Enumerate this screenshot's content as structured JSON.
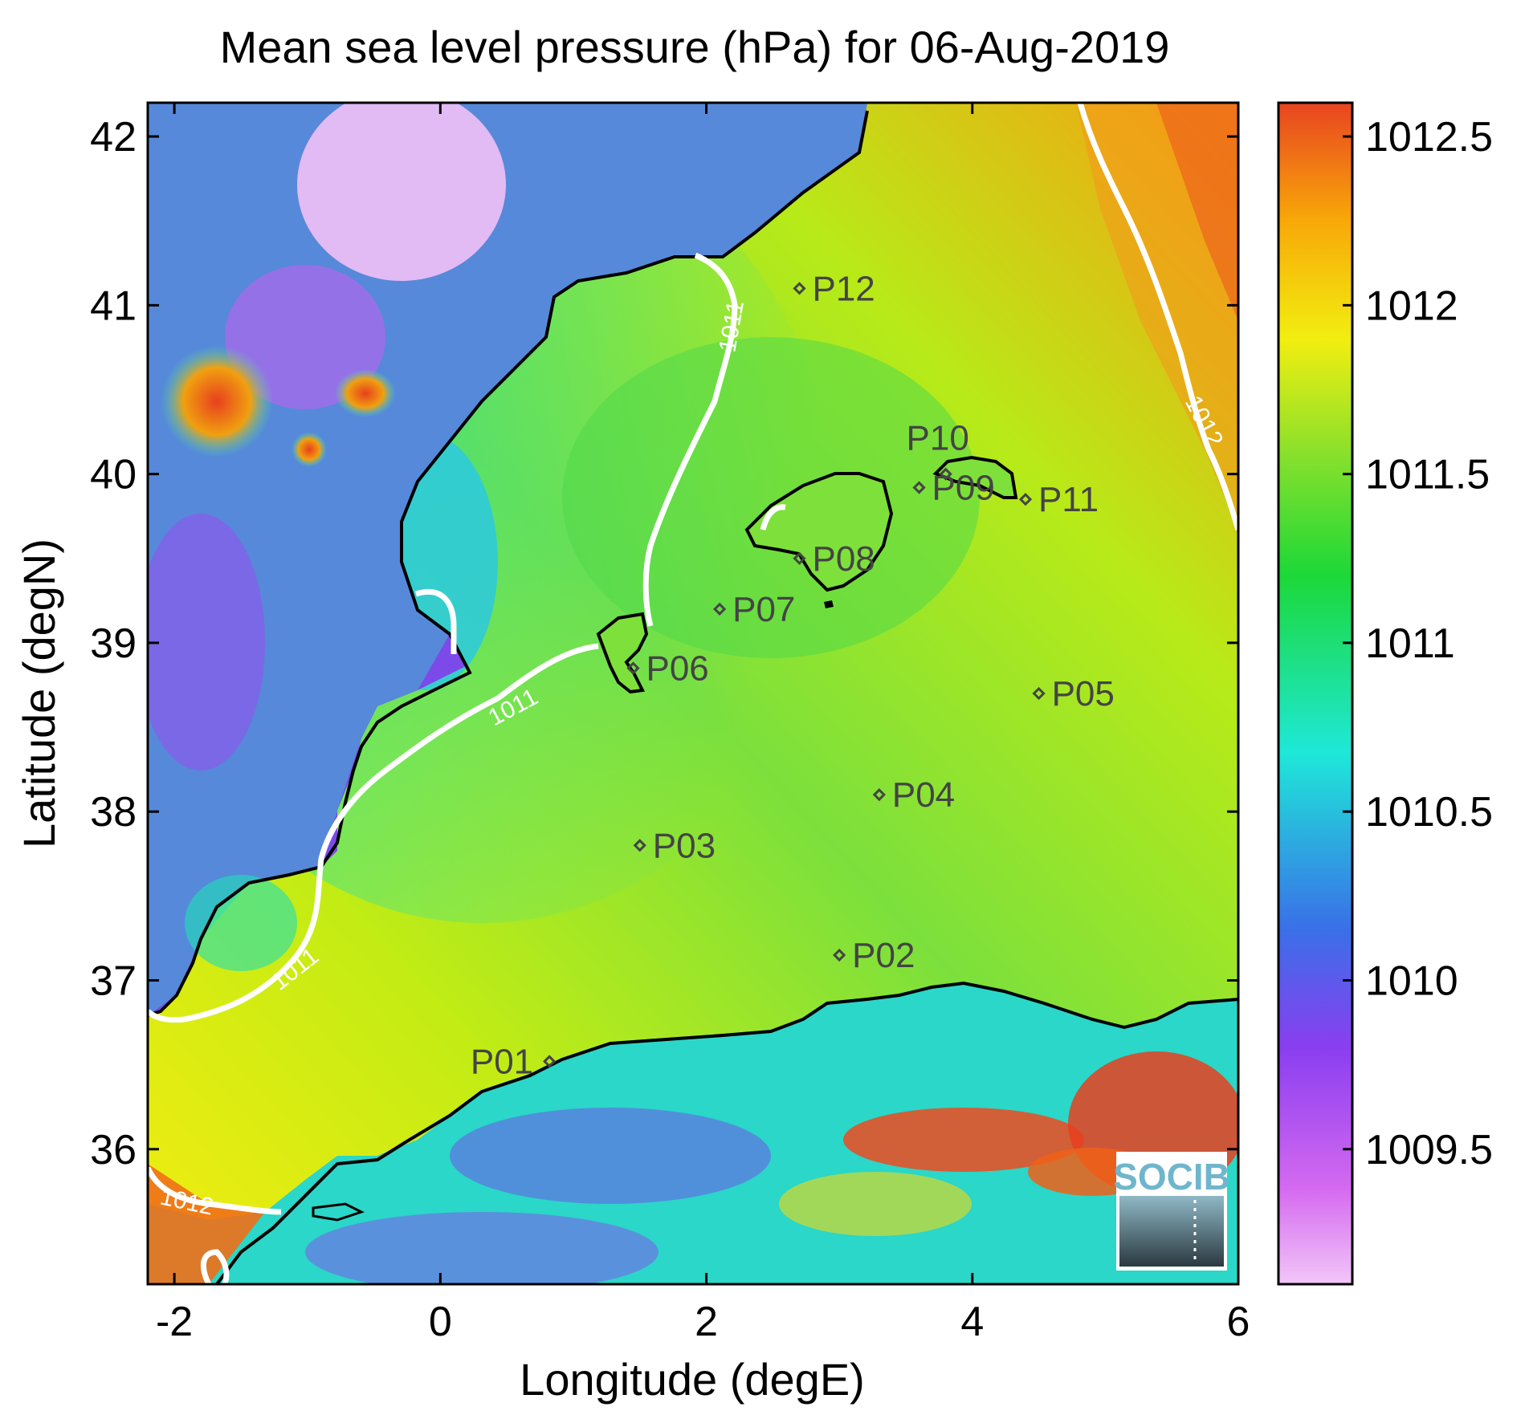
{
  "title": "Mean sea level pressure (hPa) for 06-Aug-2019",
  "xlabel": "Longitude (degE)",
  "ylabel": "Latitude (degN)",
  "xlim": [
    -2.2,
    6.0
  ],
  "ylim": [
    35.2,
    42.2
  ],
  "xticks": [
    "-2",
    "0",
    "2",
    "4",
    "6"
  ],
  "yticks": [
    "36",
    "37",
    "38",
    "39",
    "40",
    "41",
    "42"
  ],
  "colorbar": {
    "ticks": [
      "1009.5",
      "1010",
      "1010.5",
      "1011",
      "1011.5",
      "1012",
      "1012.5"
    ],
    "range": [
      1009.1,
      1012.6
    ]
  },
  "stations": [
    {
      "label": "P01",
      "lon": 0.82,
      "lat": 36.52
    },
    {
      "label": "P02",
      "lon": 3.0,
      "lat": 37.15
    },
    {
      "label": "P03",
      "lon": 1.5,
      "lat": 37.8
    },
    {
      "label": "P04",
      "lon": 3.3,
      "lat": 38.1
    },
    {
      "label": "P05",
      "lon": 4.5,
      "lat": 38.7
    },
    {
      "label": "P06",
      "lon": 1.45,
      "lat": 38.85
    },
    {
      "label": "P07",
      "lon": 2.1,
      "lat": 39.2
    },
    {
      "label": "P08",
      "lon": 2.7,
      "lat": 39.5
    },
    {
      "label": "P09",
      "lon": 3.6,
      "lat": 39.92
    },
    {
      "label": "P10",
      "lon": 3.8,
      "lat": 40.0
    },
    {
      "label": "P11",
      "lon": 4.4,
      "lat": 39.85
    },
    {
      "label": "P12",
      "lon": 2.7,
      "lat": 41.1
    }
  ],
  "contour_labels": [
    "1011",
    "1011",
    "1011",
    "1011",
    "1012",
    "1012"
  ],
  "logo": "SOCIB",
  "colors": {
    "land_mid": "#9a4cf0",
    "sea_green": "#7ee03a",
    "contour": "#ffffff",
    "coastline": "#000000",
    "station": "#444444"
  }
}
